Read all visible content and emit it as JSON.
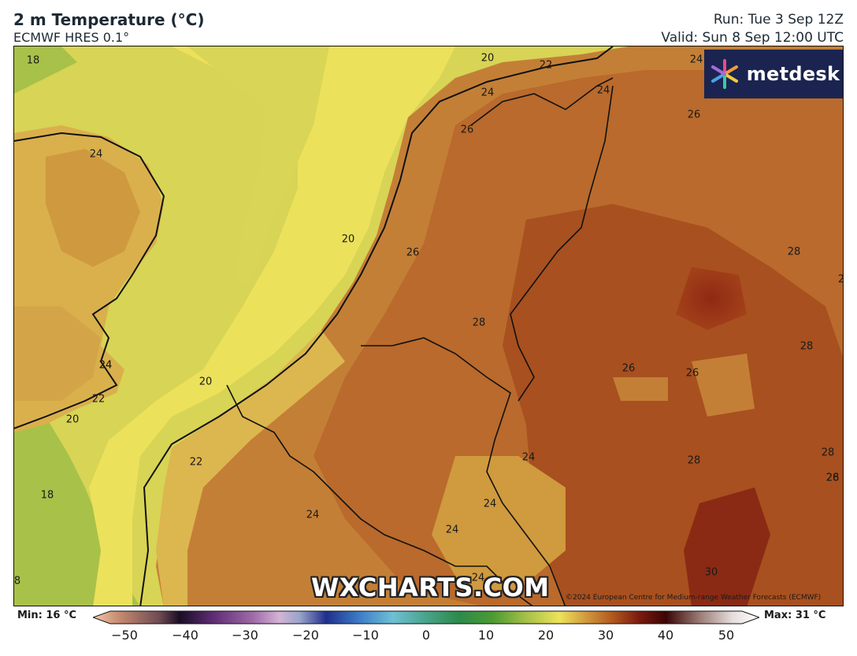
{
  "header": {
    "title": "2 m Temperature (°C)",
    "subtitle": "ECMWF HRES 0.1°",
    "run": "Run: Tue 3 Sep 12Z",
    "valid": "Valid: Sun 8 Sep 12:00 UTC"
  },
  "logo": {
    "text": "metdesk",
    "icon": "metdesk-star-icon"
  },
  "watermark": "WXCHARTS.COM",
  "copyright": "©2024 European Centre for Medium-range Weather Forecasts (ECMWF)",
  "contour_labels": [
    "18",
    "20",
    "22",
    "24",
    "24",
    "26",
    "24",
    "24",
    "26",
    "24",
    "20",
    "26",
    "28",
    "28",
    "28",
    "28",
    "24",
    "20",
    "22",
    "20",
    "26",
    "26",
    "28",
    "28",
    "26",
    "24",
    "22",
    "18",
    "24",
    "24",
    "24",
    "30",
    "24",
    "8",
    "2"
  ],
  "legend": {
    "min_label": "Min: 16 °C",
    "max_label": "Max: 31 °C",
    "ticks": [
      "−50",
      "−40",
      "−30",
      "−20",
      "−10",
      "0",
      "10",
      "20",
      "30",
      "40",
      "50"
    ]
  },
  "colors": {
    "sea_cool": "#a5c049",
    "sea_mid": "#d8d455",
    "sea_warm": "#ede25a",
    "land_warm": "#c9863a",
    "land_hot": "#a8501f",
    "land_hottest": "#8a2a14",
    "logo_bg": "#1b2450"
  }
}
